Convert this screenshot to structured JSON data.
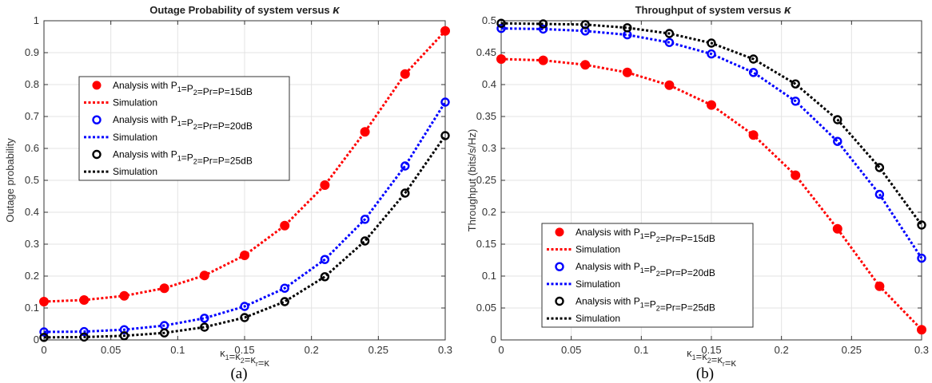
{
  "chart_data": [
    {
      "type": "line",
      "title": "Outage Probability of system versus κ",
      "xlabel": "κ1=κ2=κr=κ",
      "ylabel": "Outage probability",
      "caption": "(a)",
      "xlim": [
        0,
        0.3
      ],
      "ylim": [
        0,
        1
      ],
      "xticks": [
        0,
        0.05,
        0.1,
        0.15,
        0.2,
        0.25,
        0.3
      ],
      "xtick_labels": [
        "0",
        "0.05",
        "0.1",
        "0.15",
        "0.2",
        "0.25",
        "0.3"
      ],
      "yticks": [
        0,
        0.1,
        0.2,
        0.3,
        0.4,
        0.5,
        0.6,
        0.7,
        0.8,
        0.9,
        1
      ],
      "ytick_labels": [
        "0",
        "0.1",
        "0.2",
        "0.3",
        "0.4",
        "0.5",
        "0.6",
        "0.7",
        "0.8",
        "0.9",
        "1"
      ],
      "grid": true,
      "legend_position": "center-left",
      "x": [
        0,
        0.03,
        0.06,
        0.09,
        0.12,
        0.15,
        0.18,
        0.21,
        0.24,
        0.27,
        0.3
      ],
      "series": [
        {
          "name": "Analysis with P1=P2=Pr=P=15dB",
          "kind": "analysis",
          "marker": "filled-circle",
          "color": "#ff0000",
          "values": [
            0.12,
            0.125,
            0.138,
            0.162,
            0.202,
            0.265,
            0.358,
            0.485,
            0.652,
            0.833,
            0.968
          ]
        },
        {
          "name": "Simulation",
          "kind": "simulation",
          "color": "#ff0000",
          "values": [
            0.12,
            0.125,
            0.138,
            0.162,
            0.202,
            0.265,
            0.358,
            0.485,
            0.652,
            0.833,
            0.968
          ]
        },
        {
          "name": "Analysis with P1=P2=Pr=P=20dB",
          "kind": "analysis",
          "marker": "open-circle",
          "color": "#0000ff",
          "values": [
            0.025,
            0.026,
            0.032,
            0.045,
            0.068,
            0.105,
            0.162,
            0.252,
            0.378,
            0.545,
            0.745
          ]
        },
        {
          "name": "Simulation",
          "kind": "simulation",
          "color": "#0000ff",
          "values": [
            0.025,
            0.026,
            0.032,
            0.045,
            0.068,
            0.105,
            0.162,
            0.252,
            0.378,
            0.545,
            0.745
          ]
        },
        {
          "name": "Analysis with P1=P2=Pr=P=25dB",
          "kind": "analysis",
          "marker": "open-circle",
          "color": "#000000",
          "values": [
            0.008,
            0.009,
            0.013,
            0.022,
            0.04,
            0.07,
            0.12,
            0.198,
            0.31,
            0.46,
            0.64
          ]
        },
        {
          "name": "Simulation",
          "kind": "simulation",
          "color": "#000000",
          "values": [
            0.008,
            0.009,
            0.013,
            0.022,
            0.04,
            0.07,
            0.12,
            0.198,
            0.31,
            0.46,
            0.64
          ]
        }
      ]
    },
    {
      "type": "line",
      "title": "Throughput of system versus κ",
      "xlabel": "κ1=κ2=κr=κ",
      "ylabel": "Throughput (bits/s/Hz)",
      "caption": "(b)",
      "xlim": [
        0,
        0.3
      ],
      "ylim": [
        0,
        0.5
      ],
      "xticks": [
        0,
        0.05,
        0.1,
        0.15,
        0.2,
        0.25,
        0.3
      ],
      "xtick_labels": [
        "0",
        "0.05",
        "0.1",
        "0.15",
        "0.2",
        "0.25",
        "0.3"
      ],
      "yticks": [
        0,
        0.05,
        0.1,
        0.15,
        0.2,
        0.25,
        0.3,
        0.35,
        0.4,
        0.45,
        0.5
      ],
      "ytick_labels": [
        "0",
        "0.05",
        "0.1",
        "0.15",
        "0.2",
        "0.25",
        "0.3",
        "0.35",
        "0.4",
        "0.45",
        "0.5"
      ],
      "grid": true,
      "legend_position": "bottom-left",
      "x": [
        0,
        0.03,
        0.06,
        0.09,
        0.12,
        0.15,
        0.18,
        0.21,
        0.24,
        0.27,
        0.3
      ],
      "series": [
        {
          "name": "Analysis with P1=P2=Pr=P=15dB",
          "kind": "analysis",
          "marker": "filled-circle",
          "color": "#ff0000",
          "values": [
            0.44,
            0.438,
            0.431,
            0.419,
            0.399,
            0.368,
            0.321,
            0.258,
            0.174,
            0.084,
            0.016
          ]
        },
        {
          "name": "Simulation",
          "kind": "simulation",
          "color": "#ff0000",
          "values": [
            0.44,
            0.438,
            0.431,
            0.419,
            0.399,
            0.368,
            0.321,
            0.258,
            0.174,
            0.084,
            0.016
          ]
        },
        {
          "name": "Analysis with P1=P2=Pr=P=20dB",
          "kind": "analysis",
          "marker": "open-circle",
          "color": "#0000ff",
          "values": [
            0.488,
            0.487,
            0.484,
            0.478,
            0.466,
            0.448,
            0.419,
            0.374,
            0.311,
            0.228,
            0.128
          ]
        },
        {
          "name": "Simulation",
          "kind": "simulation",
          "color": "#0000ff",
          "values": [
            0.488,
            0.487,
            0.484,
            0.478,
            0.466,
            0.448,
            0.419,
            0.374,
            0.311,
            0.228,
            0.128
          ]
        },
        {
          "name": "Analysis with P1=P2=Pr=P=25dB",
          "kind": "analysis",
          "marker": "open-circle",
          "color": "#000000",
          "values": [
            0.496,
            0.495,
            0.494,
            0.489,
            0.48,
            0.465,
            0.44,
            0.401,
            0.345,
            0.27,
            0.18
          ]
        },
        {
          "name": "Simulation",
          "kind": "simulation",
          "color": "#000000",
          "values": [
            0.496,
            0.495,
            0.494,
            0.489,
            0.48,
            0.465,
            0.44,
            0.401,
            0.345,
            0.27,
            0.18
          ]
        }
      ]
    }
  ]
}
